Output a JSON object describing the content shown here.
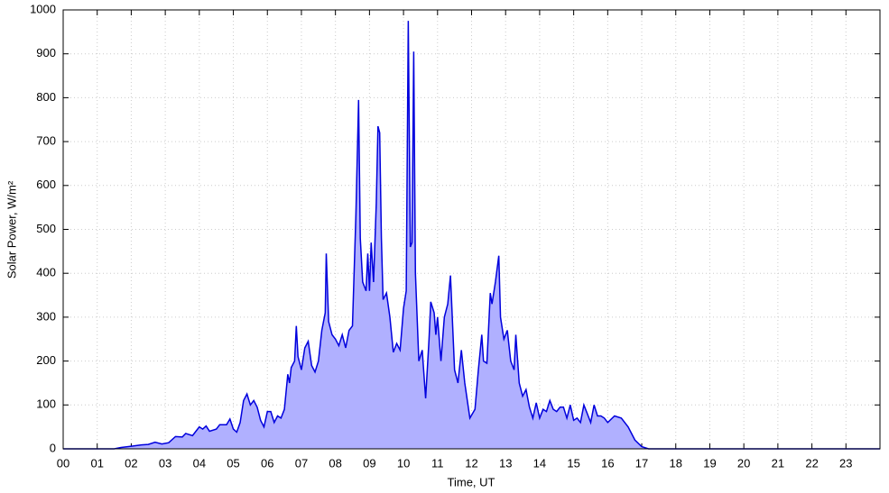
{
  "chart_data": {
    "type": "area",
    "xlabel": "Time, UT",
    "ylabel": "Solar Power, W/m²",
    "color": "#0000dd",
    "fill_color": "#b0b0ff",
    "grid": true,
    "xlim": [
      0,
      24
    ],
    "ylim": [
      0,
      1000
    ],
    "xticks": [
      {
        "value": 0,
        "label": "00"
      },
      {
        "value": 1,
        "label": "01"
      },
      {
        "value": 2,
        "label": "02"
      },
      {
        "value": 3,
        "label": "03"
      },
      {
        "value": 4,
        "label": "04"
      },
      {
        "value": 5,
        "label": "05"
      },
      {
        "value": 6,
        "label": "06"
      },
      {
        "value": 7,
        "label": "07"
      },
      {
        "value": 8,
        "label": "08"
      },
      {
        "value": 9,
        "label": "09"
      },
      {
        "value": 10,
        "label": "10"
      },
      {
        "value": 11,
        "label": "11"
      },
      {
        "value": 12,
        "label": "12"
      },
      {
        "value": 13,
        "label": "13"
      },
      {
        "value": 14,
        "label": "14"
      },
      {
        "value": 15,
        "label": "15"
      },
      {
        "value": 16,
        "label": "16"
      },
      {
        "value": 17,
        "label": "17"
      },
      {
        "value": 18,
        "label": "18"
      },
      {
        "value": 19,
        "label": "19"
      },
      {
        "value": 20,
        "label": "20"
      },
      {
        "value": 21,
        "label": "21"
      },
      {
        "value": 22,
        "label": "22"
      },
      {
        "value": 23,
        "label": "23"
      }
    ],
    "yticks": [
      0,
      100,
      200,
      300,
      400,
      500,
      600,
      700,
      800,
      900,
      1000
    ],
    "x": [
      0,
      1.5,
      1.7,
      2.0,
      2.3,
      2.5,
      2.7,
      2.9,
      3.1,
      3.3,
      3.5,
      3.6,
      3.8,
      3.9,
      4.0,
      4.1,
      4.2,
      4.3,
      4.5,
      4.6,
      4.8,
      4.9,
      5.0,
      5.1,
      5.2,
      5.3,
      5.4,
      5.5,
      5.6,
      5.7,
      5.8,
      5.9,
      6.0,
      6.1,
      6.2,
      6.3,
      6.4,
      6.5,
      6.6,
      6.65,
      6.7,
      6.8,
      6.85,
      6.9,
      7.0,
      7.1,
      7.2,
      7.3,
      7.4,
      7.5,
      7.6,
      7.7,
      7.73,
      7.8,
      7.9,
      8.0,
      8.1,
      8.2,
      8.3,
      8.4,
      8.5,
      8.6,
      8.68,
      8.73,
      8.8,
      8.9,
      8.95,
      9.0,
      9.05,
      9.12,
      9.2,
      9.25,
      9.3,
      9.35,
      9.4,
      9.5,
      9.6,
      9.7,
      9.8,
      9.9,
      10.0,
      10.08,
      10.14,
      10.2,
      10.25,
      10.3,
      10.35,
      10.45,
      10.55,
      10.65,
      10.75,
      10.8,
      10.9,
      10.95,
      11.0,
      11.1,
      11.2,
      11.3,
      11.38,
      11.5,
      11.6,
      11.7,
      11.8,
      11.95,
      12.1,
      12.2,
      12.3,
      12.35,
      12.45,
      12.55,
      12.6,
      12.7,
      12.8,
      12.85,
      12.95,
      13.05,
      13.15,
      13.25,
      13.3,
      13.4,
      13.5,
      13.6,
      13.7,
      13.8,
      13.9,
      14.0,
      14.1,
      14.2,
      14.3,
      14.4,
      14.5,
      14.6,
      14.7,
      14.8,
      14.9,
      15.0,
      15.1,
      15.2,
      15.3,
      15.4,
      15.5,
      15.6,
      15.7,
      15.8,
      15.9,
      16.0,
      16.2,
      16.4,
      16.6,
      16.8,
      17.0,
      17.2,
      24
    ],
    "values": [
      0,
      0,
      3,
      6,
      9,
      10,
      15,
      11,
      14,
      28,
      27,
      35,
      30,
      40,
      50,
      45,
      52,
      40,
      45,
      55,
      55,
      68,
      45,
      38,
      60,
      110,
      125,
      100,
      110,
      95,
      65,
      50,
      85,
      85,
      60,
      75,
      70,
      90,
      170,
      150,
      185,
      200,
      280,
      210,
      180,
      230,
      245,
      190,
      175,
      200,
      270,
      310,
      445,
      290,
      260,
      250,
      235,
      260,
      230,
      270,
      280,
      530,
      795,
      480,
      380,
      360,
      445,
      360,
      470,
      380,
      560,
      735,
      720,
      480,
      340,
      355,
      300,
      220,
      240,
      225,
      320,
      360,
      975,
      460,
      470,
      905,
      400,
      200,
      225,
      115,
      250,
      335,
      310,
      260,
      300,
      200,
      300,
      330,
      395,
      180,
      150,
      225,
      150,
      70,
      90,
      180,
      260,
      200,
      195,
      355,
      330,
      380,
      440,
      300,
      250,
      270,
      200,
      180,
      260,
      150,
      120,
      135,
      95,
      70,
      105,
      70,
      90,
      85,
      110,
      90,
      85,
      95,
      95,
      70,
      100,
      65,
      70,
      60,
      100,
      80,
      60,
      100,
      75,
      75,
      70,
      60,
      75,
      70,
      50,
      20,
      5,
      0,
      0
    ]
  }
}
